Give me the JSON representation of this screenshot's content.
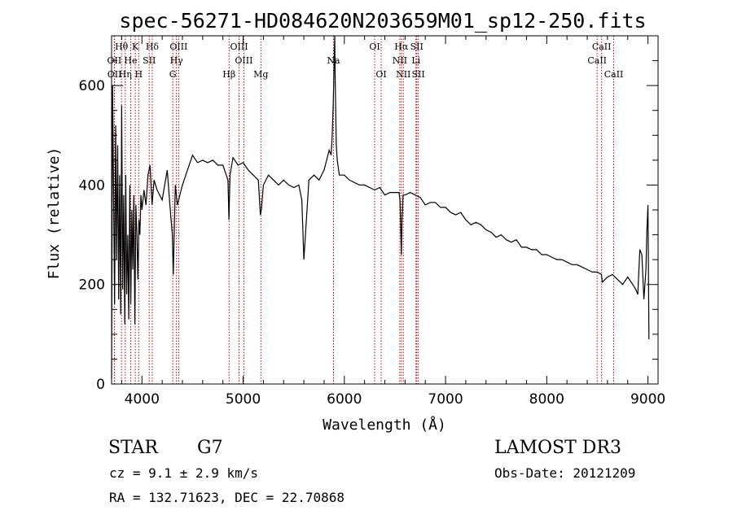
{
  "chart_data": {
    "type": "line",
    "title": "spec-56271-HD084620N203659M01_sp12-250.fits",
    "xlabel": "Wavelength (Å)",
    "ylabel": "Flux (relative)",
    "xlim": [
      3700,
      9100
    ],
    "ylim": [
      0,
      700
    ],
    "x_ticks": [
      4000,
      5000,
      6000,
      7000,
      8000,
      9000
    ],
    "y_ticks": [
      0,
      200,
      400,
      600
    ],
    "line_markers": [
      {
        "label": "Hθ",
        "x": 3798,
        "row": 0
      },
      {
        "label": "K",
        "x": 3934,
        "row": 0
      },
      {
        "label": "Hδ",
        "x": 4102,
        "row": 0
      },
      {
        "label": "OIII",
        "x": 4363,
        "row": 0
      },
      {
        "label": "OIII",
        "x": 4960,
        "row": 0
      },
      {
        "label": "OI",
        "x": 6300,
        "row": 0
      },
      {
        "label": "Hα",
        "x": 6563,
        "row": 0
      },
      {
        "label": "SII",
        "x": 6716,
        "row": 0
      },
      {
        "label": "CaII",
        "x": 8542,
        "row": 0
      },
      {
        "label": "OII",
        "x": 3727,
        "row": 1
      },
      {
        "label": "He",
        "x": 3889,
        "row": 1
      },
      {
        "label": "SII",
        "x": 4072,
        "row": 1
      },
      {
        "label": "Hγ",
        "x": 4341,
        "row": 1
      },
      {
        "label": "OIII",
        "x": 5007,
        "row": 1
      },
      {
        "label": "Na",
        "x": 5893,
        "row": 1
      },
      {
        "label": "NII",
        "x": 6548,
        "row": 1
      },
      {
        "label": "Li",
        "x": 6708,
        "row": 1
      },
      {
        "label": "CaII",
        "x": 8498,
        "row": 1
      },
      {
        "label": "OII",
        "x": 3729,
        "row": 2
      },
      {
        "label": "Hη",
        "x": 3835,
        "row": 2
      },
      {
        "label": "H",
        "x": 3968,
        "row": 2
      },
      {
        "label": "G",
        "x": 4305,
        "row": 2
      },
      {
        "label": "Hβ",
        "x": 4861,
        "row": 2
      },
      {
        "label": "Mg",
        "x": 5175,
        "row": 2
      },
      {
        "label": "OI",
        "x": 6364,
        "row": 2
      },
      {
        "label": "NII",
        "x": 6583,
        "row": 2
      },
      {
        "label": "SII",
        "x": 6731,
        "row": 2
      },
      {
        "label": "CaII",
        "x": 8662,
        "row": 2
      }
    ],
    "series": [
      {
        "name": "flux",
        "x": [
          3700,
          3710,
          3720,
          3730,
          3740,
          3750,
          3760,
          3770,
          3780,
          3790,
          3800,
          3810,
          3820,
          3830,
          3840,
          3850,
          3860,
          3870,
          3880,
          3890,
          3900,
          3910,
          3920,
          3930,
          3940,
          3950,
          3960,
          3970,
          3980,
          3990,
          4000,
          4020,
          4040,
          4060,
          4080,
          4100,
          4120,
          4150,
          4200,
          4250,
          4280,
          4300,
          4310,
          4320,
          4330,
          4350,
          4400,
          4450,
          4500,
          4550,
          4600,
          4650,
          4700,
          4750,
          4800,
          4850,
          4860,
          4870,
          4900,
          4950,
          5000,
          5050,
          5100,
          5150,
          5170,
          5180,
          5200,
          5250,
          5300,
          5350,
          5400,
          5450,
          5500,
          5550,
          5580,
          5600,
          5650,
          5700,
          5750,
          5800,
          5850,
          5870,
          5880,
          5890,
          5895,
          5900,
          5905,
          5910,
          5920,
          5930,
          5950,
          6000,
          6050,
          6100,
          6150,
          6200,
          6250,
          6300,
          6350,
          6400,
          6450,
          6500,
          6540,
          6550,
          6560,
          6563,
          6570,
          6580,
          6600,
          6650,
          6700,
          6750,
          6800,
          6850,
          6900,
          6950,
          7000,
          7050,
          7100,
          7150,
          7200,
          7250,
          7300,
          7350,
          7400,
          7450,
          7500,
          7550,
          7600,
          7650,
          7700,
          7750,
          7800,
          7850,
          7900,
          7950,
          8000,
          8050,
          8100,
          8150,
          8200,
          8250,
          8300,
          8350,
          8400,
          8450,
          8500,
          8540,
          8550,
          8600,
          8650,
          8700,
          8750,
          8800,
          8850,
          8880,
          8900,
          8920,
          8940,
          8960,
          8980,
          8990,
          9000,
          9010
        ],
        "values": [
          10,
          600,
          380,
          160,
          520,
          250,
          480,
          170,
          420,
          140,
          560,
          190,
          380,
          120,
          420,
          180,
          300,
          130,
          400,
          160,
          350,
          230,
          380,
          120,
          360,
          300,
          210,
          330,
          300,
          380,
          350,
          390,
          360,
          420,
          440,
          360,
          410,
          390,
          370,
          430,
          350,
          300,
          220,
          310,
          400,
          360,
          400,
          430,
          460,
          445,
          450,
          445,
          450,
          440,
          440,
          410,
          330,
          420,
          455,
          440,
          445,
          430,
          420,
          410,
          340,
          350,
          400,
          420,
          410,
          400,
          410,
          400,
          395,
          400,
          370,
          250,
          410,
          420,
          410,
          430,
          470,
          460,
          500,
          560,
          600,
          650,
          700,
          610,
          480,
          450,
          420,
          420,
          410,
          405,
          400,
          400,
          395,
          390,
          395,
          380,
          385,
          385,
          385,
          370,
          290,
          260,
          330,
          380,
          380,
          385,
          380,
          375,
          360,
          365,
          365,
          355,
          355,
          345,
          340,
          345,
          330,
          320,
          325,
          320,
          310,
          305,
          295,
          300,
          290,
          285,
          290,
          275,
          275,
          270,
          270,
          260,
          260,
          255,
          250,
          250,
          245,
          240,
          240,
          235,
          230,
          225,
          225,
          220,
          205,
          215,
          220,
          210,
          200,
          215,
          200,
          190,
          180,
          270,
          260,
          170,
          230,
          310,
          360,
          90
        ]
      }
    ]
  },
  "footer": {
    "object_type": "STAR",
    "spectral_class": "G7",
    "survey": "LAMOST DR3",
    "redshift": "cz = 9.1 ± 2.9 km/s",
    "obs_date": "Obs-Date: 20121209",
    "coordinates": "RA = 132.71623, DEC =  22.70868"
  }
}
